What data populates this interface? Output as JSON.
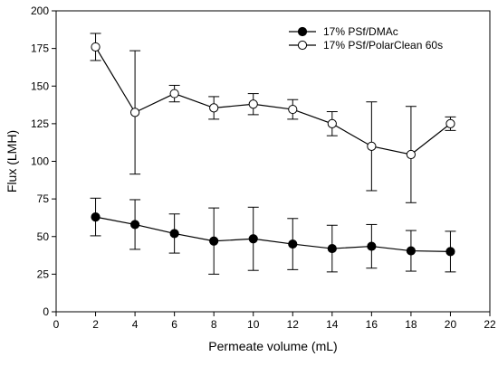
{
  "chart_data": {
    "type": "line",
    "title": "",
    "xlabel": "Permeate volume (mL)",
    "ylabel": "Flux (LMH)",
    "xlim": [
      0,
      22
    ],
    "ylim": [
      0,
      200
    ],
    "xticks": [
      0,
      2,
      4,
      6,
      8,
      10,
      12,
      14,
      16,
      18,
      20,
      22
    ],
    "yticks": [
      0,
      25,
      50,
      75,
      100,
      125,
      150,
      175,
      200
    ],
    "grid": false,
    "legend_position": "top-right",
    "series": [
      {
        "name": "17% PSf/DMAc",
        "marker": "filled-circle",
        "color": "#000000",
        "x": [
          2,
          4,
          6,
          8,
          10,
          12,
          14,
          16,
          18,
          20
        ],
        "y": [
          63,
          58,
          52,
          47,
          48.5,
          45,
          42,
          43.5,
          40.5,
          40
        ],
        "err": [
          12.5,
          16.5,
          13,
          22,
          21,
          17,
          15.5,
          14.5,
          13.5,
          13.5
        ]
      },
      {
        "name": "17% PSf/PolarClean 60s",
        "marker": "open-circle",
        "color": "#000000",
        "x": [
          2,
          4,
          6,
          8,
          10,
          12,
          14,
          16,
          18,
          20
        ],
        "y": [
          176,
          132.5,
          145,
          135.5,
          138,
          134.5,
          125,
          110,
          104.5,
          125
        ],
        "err": [
          9,
          41,
          5.5,
          7.5,
          7,
          6.5,
          8,
          29.5,
          32,
          4.5
        ]
      }
    ]
  }
}
